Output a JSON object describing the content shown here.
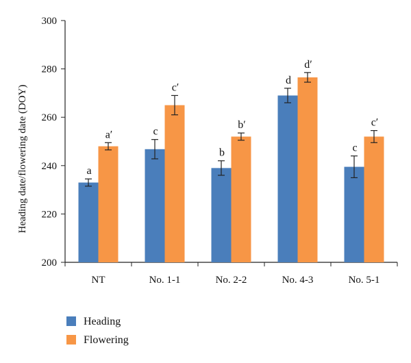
{
  "chart_data": {
    "type": "bar",
    "title": "",
    "xlabel": "",
    "ylabel": "Heading date/flowering date (DOY)",
    "ylim": [
      200,
      300
    ],
    "yticks": [
      200,
      220,
      240,
      260,
      280,
      300
    ],
    "grid": false,
    "legend_position": "bottom-left",
    "categories": [
      "NT",
      "No. 1-1",
      "No. 2-2",
      "No. 4-3",
      "No. 5-1"
    ],
    "series": [
      {
        "name": "Heading",
        "color": "#4a7ebb",
        "values": [
          233,
          246.8,
          239,
          269,
          239.5
        ],
        "error": [
          1.5,
          4,
          3,
          3,
          4.5
        ],
        "labels": [
          "a",
          "c",
          "b",
          "d",
          "c"
        ]
      },
      {
        "name": "Flowering",
        "color": "#f79646",
        "values": [
          248,
          265,
          252,
          276.5,
          252
        ],
        "error": [
          1.5,
          4,
          1.5,
          2,
          2.5
        ],
        "labels": [
          "a′",
          "c′",
          "b′",
          "d′",
          "c′"
        ]
      }
    ]
  }
}
